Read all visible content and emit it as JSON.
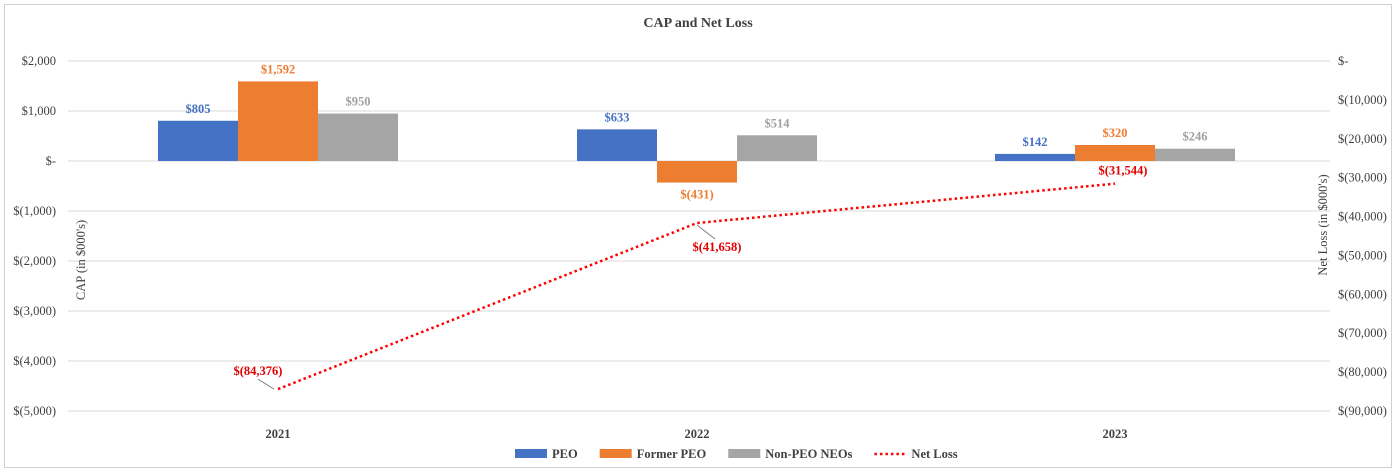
{
  "chart_data": {
    "type": "bar",
    "title": "CAP and Net Loss",
    "categories": [
      "2021",
      "2022",
      "2023"
    ],
    "ylabel": "CAP (in $000's)",
    "y2label": "Net Loss (in $000's)",
    "ylim": [
      -5000,
      2000
    ],
    "y2lim": [
      -90000,
      0
    ],
    "yticks": [
      2000,
      1000,
      0,
      -1000,
      -2000,
      -3000,
      -4000,
      -5000
    ],
    "ytick_labels": [
      "$2,000",
      "$1,000",
      "$-",
      "$(1,000)",
      "$(2,000)",
      "$(3,000)",
      "$(4,000)",
      "$(5,000)"
    ],
    "y2ticks": [
      0,
      -10000,
      -20000,
      -30000,
      -40000,
      -50000,
      -60000,
      -70000,
      -80000,
      -90000
    ],
    "y2tick_labels": [
      "$-",
      "$(10,000)",
      "$(20,000)",
      "$(30,000)",
      "$(40,000)",
      "$(50,000)",
      "$(60,000)",
      "$(70,000)",
      "$(80,000)",
      "$(90,000)"
    ],
    "series": [
      {
        "name": "PEO",
        "axis": "left",
        "kind": "bar",
        "color": "#4472c4",
        "values": [
          805,
          633,
          142
        ],
        "labels": [
          "$805",
          "$633",
          "$142"
        ]
      },
      {
        "name": "Former PEO",
        "axis": "left",
        "kind": "bar",
        "color": "#ed7d31",
        "values": [
          1592,
          -431,
          320
        ],
        "labels": [
          "$1,592",
          "$(431)",
          "$320"
        ]
      },
      {
        "name": "Non-PEO NEOs",
        "axis": "left",
        "kind": "bar",
        "color": "#a5a5a5",
        "values": [
          950,
          514,
          246
        ],
        "labels": [
          "$950",
          "$514",
          "$246"
        ]
      },
      {
        "name": "Net Loss",
        "axis": "right",
        "kind": "line",
        "style": "dotted",
        "color": "#ff0000",
        "values": [
          -84376,
          -41658,
          -31544
        ],
        "labels": [
          "$(84,376)",
          "$(41,658)",
          "$(31,544)"
        ]
      }
    ],
    "legend_position": "bottom-center"
  }
}
